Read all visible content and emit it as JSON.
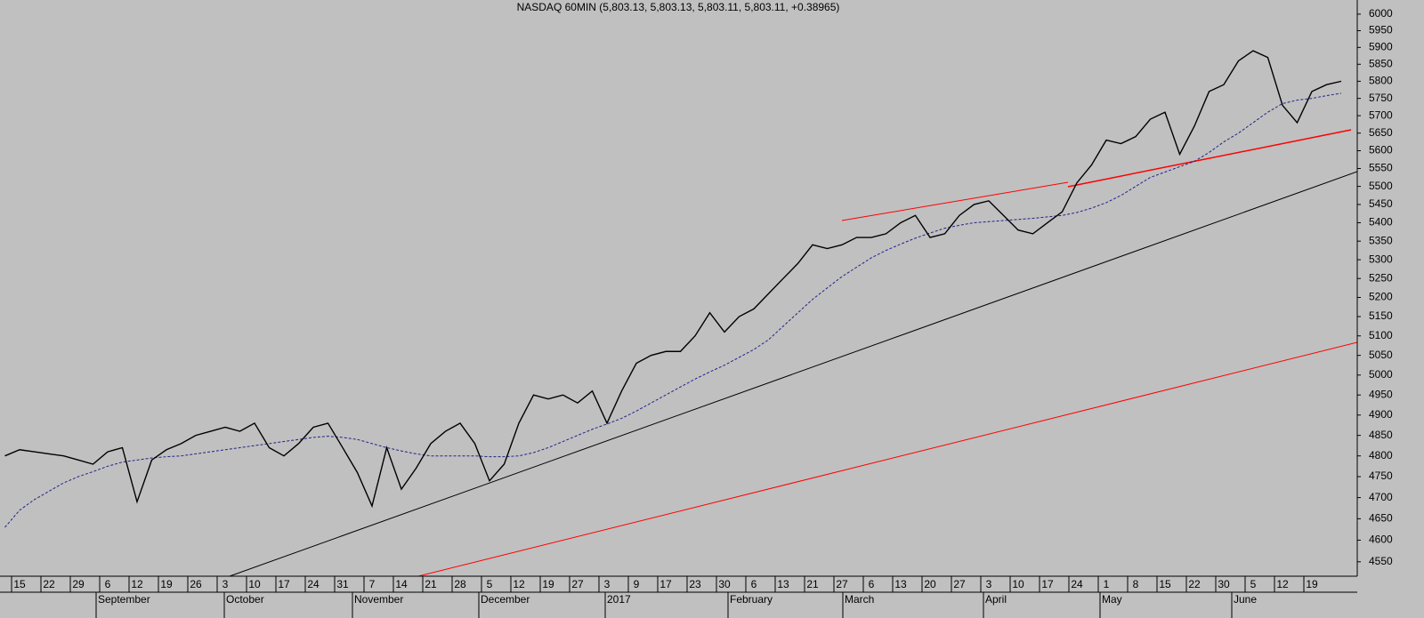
{
  "chart_data": {
    "type": "line",
    "title": "NASDAQ 60MIN (5,803.13, 5,803.13, 5,803.11, 5,803.11, +0.38965)",
    "categories": [
      null,
      "15",
      null,
      "22",
      null,
      "29",
      null,
      "6",
      null,
      "12",
      null,
      "19",
      null,
      "26",
      null,
      "3",
      null,
      "10",
      null,
      "17",
      null,
      "24",
      null,
      "31",
      null,
      "7",
      null,
      "14",
      null,
      "21",
      null,
      "28",
      null,
      "5",
      null,
      "12",
      null,
      "19",
      null,
      "27",
      null,
      "3",
      null,
      "9",
      null,
      "17",
      null,
      "23",
      null,
      "30",
      null,
      "6",
      null,
      "13",
      null,
      "21",
      null,
      "27",
      null,
      "6",
      null,
      "13",
      null,
      "20",
      null,
      "27",
      null,
      "3",
      null,
      "10",
      null,
      "17",
      null,
      "24",
      null,
      "1",
      null,
      "8",
      null,
      "15",
      null,
      "22",
      null,
      "30",
      null,
      "5",
      null,
      "12",
      null,
      "19",
      null,
      null
    ],
    "month_labels": [
      "September",
      "October",
      "November",
      "December",
      "2017",
      "February",
      "March",
      "April",
      "May",
      "June"
    ],
    "series": [
      {
        "color": "#000000",
        "values": [
          4800,
          4815,
          4810,
          4805,
          4800,
          4790,
          4780,
          4810,
          4820,
          4690,
          4790,
          4815,
          4830,
          4850,
          4860,
          4870,
          4860,
          4880,
          4820,
          4800,
          4830,
          4870,
          4880,
          4820,
          4760,
          4680,
          4820,
          4720,
          4770,
          4830,
          4860,
          4880,
          4830,
          4740,
          4780,
          4880,
          4950,
          4940,
          4950,
          4930,
          4960,
          4880,
          4960,
          5030,
          5050,
          5060,
          5060,
          5100,
          5160,
          5110,
          5150,
          5170,
          5210,
          5250,
          5290,
          5340,
          5330,
          5340,
          5360,
          5360,
          5370,
          5400,
          5420,
          5360,
          5370,
          5420,
          5450,
          5460,
          5420,
          5380,
          5370,
          5400,
          5430,
          5510,
          5560,
          5630,
          5620,
          5640,
          5690,
          5710,
          5590,
          5670,
          5770,
          5790,
          5860,
          5890,
          5870,
          5730,
          5680,
          5770,
          5790,
          5800
        ]
      },
      {
        "color": "#22228a",
        "dashed": true,
        "values": [
          4630,
          4670,
          4695,
          4715,
          4735,
          4750,
          4762,
          4775,
          4785,
          4790,
          4795,
          4798,
          4800,
          4805,
          4810,
          4815,
          4820,
          4825,
          4830,
          4835,
          4840,
          4845,
          4848,
          4845,
          4840,
          4830,
          4820,
          4812,
          4805,
          4800,
          4800,
          4800,
          4800,
          4798,
          4798,
          4800,
          4808,
          4820,
          4835,
          4850,
          4865,
          4878,
          4892,
          4910,
          4930,
          4950,
          4970,
          4990,
          5008,
          5025,
          5045,
          5065,
          5090,
          5125,
          5160,
          5195,
          5225,
          5255,
          5280,
          5305,
          5325,
          5342,
          5358,
          5372,
          5385,
          5393,
          5400,
          5403,
          5406,
          5409,
          5412,
          5416,
          5420,
          5428,
          5440,
          5455,
          5475,
          5500,
          5525,
          5540,
          5555,
          5570,
          5595,
          5625,
          5650,
          5680,
          5710,
          5735,
          5745,
          5750,
          5758,
          5765
        ]
      }
    ],
    "log_scale": true,
    "ylim": [
      4517,
      6043
    ],
    "yticks": [
      4550,
      4600,
      4650,
      4700,
      4750,
      4800,
      4850,
      4900,
      4950,
      5000,
      5050,
      5100,
      5150,
      5200,
      5250,
      5300,
      5350,
      5400,
      5450,
      5500,
      5550,
      5600,
      5650,
      5700,
      5750,
      5800,
      5850,
      5900,
      5950,
      6000
    ]
  }
}
